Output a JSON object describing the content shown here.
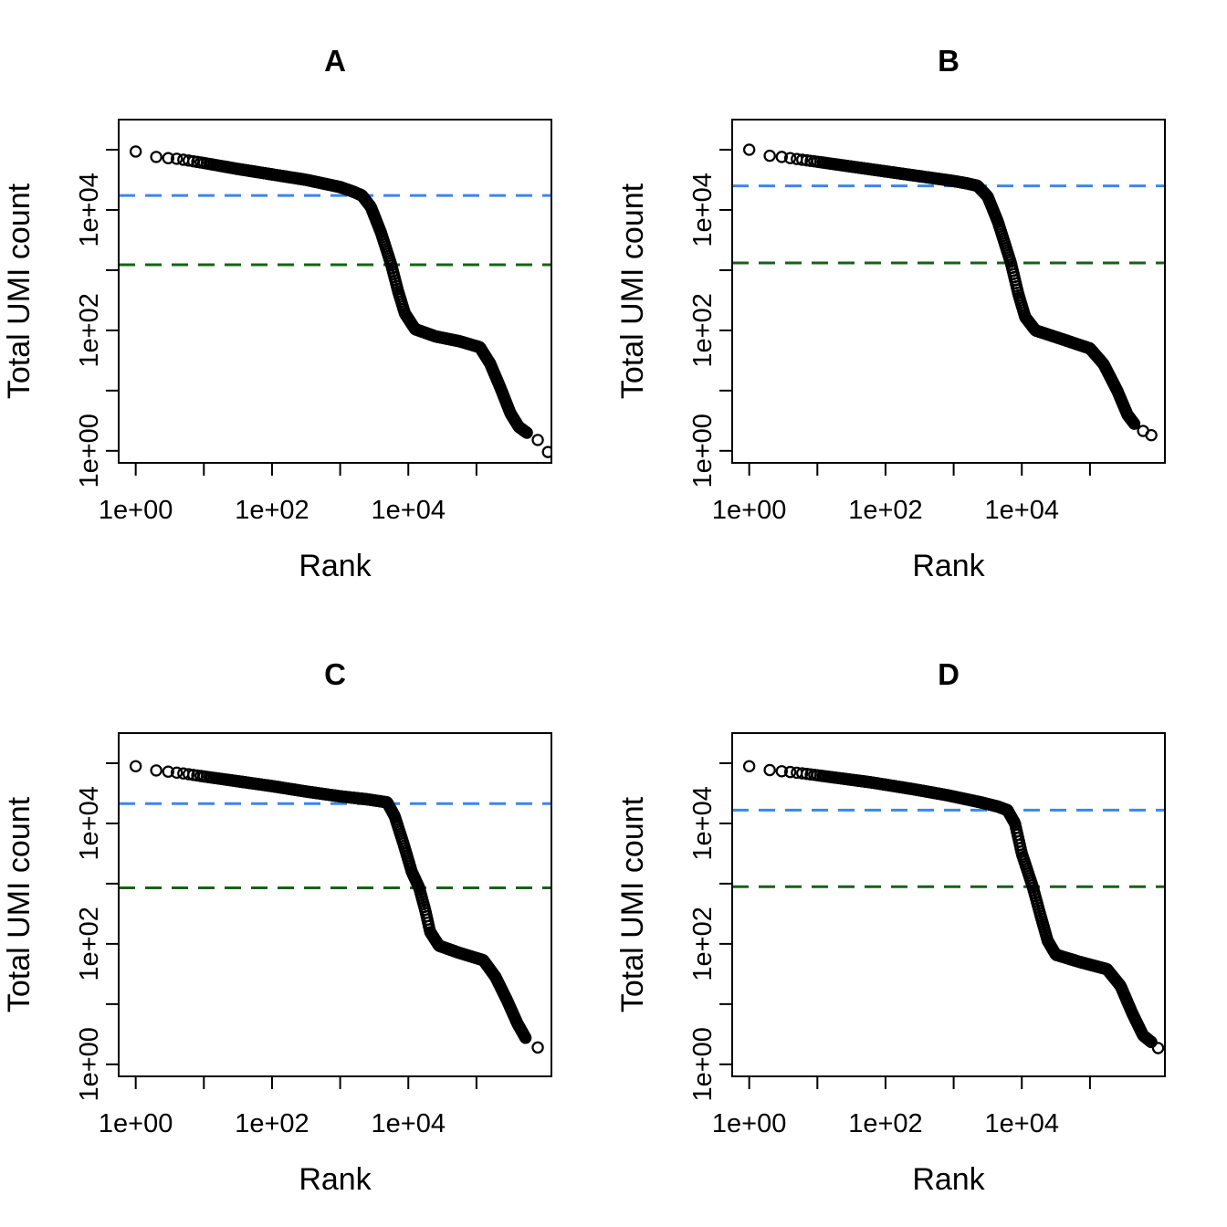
{
  "figure": {
    "background_color": "#ffffff",
    "xlabel": "Rank",
    "ylabel": "Total UMI count",
    "x_axis": {
      "scale": "log10",
      "tick_decades": [
        0,
        1,
        2,
        3,
        4,
        5
      ],
      "tick_labels": {
        "0": "1e+00",
        "2": "1e+02",
        "4": "1e+04"
      },
      "lim_log10": [
        -0.25,
        6.1
      ]
    },
    "y_axis": {
      "scale": "log10",
      "tick_decades": [
        0,
        1,
        2,
        3,
        4,
        5
      ],
      "tick_labels": {
        "0": "1e+00",
        "2": "1e+02",
        "4": "1e+04"
      },
      "lim_log10": [
        -0.2,
        5.5
      ]
    },
    "colors": {
      "points": "#000000",
      "blue_dashed_line": "#3b86ee",
      "green_dashed_line": "#156315"
    },
    "dash_pattern": "18 11",
    "marker": {
      "shape": "open-circle",
      "radius": 5.6,
      "stroke_width": 2.2
    }
  },
  "chart_data": [
    {
      "id": "A",
      "title": "A",
      "type": "scatter",
      "xlabel": "Rank",
      "ylabel": "Total UMI count",
      "blue_dashed_line": {
        "log10_count": 4.24,
        "approx_count": 17000
      },
      "green_dashed_line": {
        "log10_count": 3.09,
        "approx_count": 1200
      },
      "curve_log10_rank_vs_count": [
        [
          0.0,
          4.97
        ],
        [
          0.3,
          4.88
        ],
        [
          0.48,
          4.86
        ],
        [
          0.6,
          4.85
        ],
        [
          0.78,
          4.82
        ],
        [
          1.0,
          4.78
        ],
        [
          1.5,
          4.68
        ],
        [
          2.0,
          4.59
        ],
        [
          2.5,
          4.5
        ],
        [
          3.0,
          4.38
        ],
        [
          3.2,
          4.3
        ],
        [
          3.32,
          4.24
        ],
        [
          3.45,
          4.05
        ],
        [
          3.6,
          3.62
        ],
        [
          3.75,
          3.09
        ],
        [
          3.85,
          2.65
        ],
        [
          3.95,
          2.28
        ],
        [
          4.1,
          2.02
        ],
        [
          4.4,
          1.9
        ],
        [
          4.75,
          1.82
        ],
        [
          5.05,
          1.72
        ],
        [
          5.2,
          1.45
        ],
        [
          5.35,
          1.05
        ],
        [
          5.5,
          0.62
        ],
        [
          5.62,
          0.4
        ],
        [
          5.74,
          0.3
        ]
      ],
      "tail_points_log10": [
        [
          5.9,
          0.18
        ],
        [
          6.05,
          -0.02
        ]
      ]
    },
    {
      "id": "B",
      "title": "B",
      "type": "scatter",
      "xlabel": "Rank",
      "ylabel": "Total UMI count",
      "blue_dashed_line": {
        "log10_count": 4.4,
        "approx_count": 25000
      },
      "green_dashed_line": {
        "log10_count": 3.12,
        "approx_count": 1300
      },
      "curve_log10_rank_vs_count": [
        [
          0.0,
          5.0
        ],
        [
          0.3,
          4.9
        ],
        [
          0.48,
          4.88
        ],
        [
          0.67,
          4.85
        ],
        [
          1.0,
          4.8
        ],
        [
          1.5,
          4.72
        ],
        [
          2.0,
          4.64
        ],
        [
          2.5,
          4.56
        ],
        [
          3.0,
          4.48
        ],
        [
          3.2,
          4.44
        ],
        [
          3.35,
          4.4
        ],
        [
          3.5,
          4.22
        ],
        [
          3.65,
          3.8
        ],
        [
          3.84,
          3.12
        ],
        [
          3.95,
          2.6
        ],
        [
          4.05,
          2.22
        ],
        [
          4.2,
          2.0
        ],
        [
          4.55,
          1.87
        ],
        [
          5.0,
          1.7
        ],
        [
          5.2,
          1.44
        ],
        [
          5.4,
          1.0
        ],
        [
          5.55,
          0.6
        ],
        [
          5.65,
          0.45
        ]
      ],
      "tail_points_log10": [
        [
          5.78,
          0.33
        ],
        [
          5.9,
          0.26
        ]
      ]
    },
    {
      "id": "C",
      "title": "C",
      "type": "scatter",
      "xlabel": "Rank",
      "ylabel": "Total UMI count",
      "blue_dashed_line": {
        "log10_count": 4.33,
        "approx_count": 22000
      },
      "green_dashed_line": {
        "log10_count": 2.93,
        "approx_count": 850
      },
      "curve_log10_rank_vs_count": [
        [
          0.0,
          4.95
        ],
        [
          0.3,
          4.88
        ],
        [
          0.48,
          4.86
        ],
        [
          0.7,
          4.83
        ],
        [
          1.0,
          4.78
        ],
        [
          1.5,
          4.7
        ],
        [
          2.0,
          4.62
        ],
        [
          2.5,
          4.53
        ],
        [
          3.0,
          4.45
        ],
        [
          3.4,
          4.4
        ],
        [
          3.69,
          4.35
        ],
        [
          3.8,
          4.12
        ],
        [
          3.93,
          3.66
        ],
        [
          4.05,
          3.2
        ],
        [
          4.16,
          2.93
        ],
        [
          4.25,
          2.55
        ],
        [
          4.32,
          2.2
        ],
        [
          4.45,
          1.97
        ],
        [
          4.75,
          1.85
        ],
        [
          5.1,
          1.73
        ],
        [
          5.28,
          1.45
        ],
        [
          5.45,
          1.06
        ],
        [
          5.6,
          0.68
        ],
        [
          5.72,
          0.44
        ]
      ],
      "tail_points_log10": [
        [
          5.9,
          0.28
        ]
      ]
    },
    {
      "id": "D",
      "title": "D",
      "type": "scatter",
      "xlabel": "Rank",
      "ylabel": "Total UMI count",
      "blue_dashed_line": {
        "log10_count": 4.22,
        "approx_count": 17000
      },
      "green_dashed_line": {
        "log10_count": 2.95,
        "approx_count": 890
      },
      "curve_log10_rank_vs_count": [
        [
          0.0,
          4.95
        ],
        [
          0.33,
          4.88
        ],
        [
          0.55,
          4.86
        ],
        [
          0.8,
          4.83
        ],
        [
          1.2,
          4.77
        ],
        [
          1.8,
          4.68
        ],
        [
          2.4,
          4.57
        ],
        [
          2.9,
          4.47
        ],
        [
          3.4,
          4.35
        ],
        [
          3.65,
          4.28
        ],
        [
          3.79,
          4.22
        ],
        [
          3.9,
          4.0
        ],
        [
          4.0,
          3.5
        ],
        [
          4.16,
          2.95
        ],
        [
          4.28,
          2.45
        ],
        [
          4.38,
          2.05
        ],
        [
          4.5,
          1.82
        ],
        [
          4.85,
          1.7
        ],
        [
          5.25,
          1.58
        ],
        [
          5.45,
          1.3
        ],
        [
          5.62,
          0.85
        ],
        [
          5.78,
          0.48
        ],
        [
          5.9,
          0.37
        ]
      ],
      "tail_points_log10": [
        [
          6.0,
          0.27
        ]
      ]
    }
  ]
}
